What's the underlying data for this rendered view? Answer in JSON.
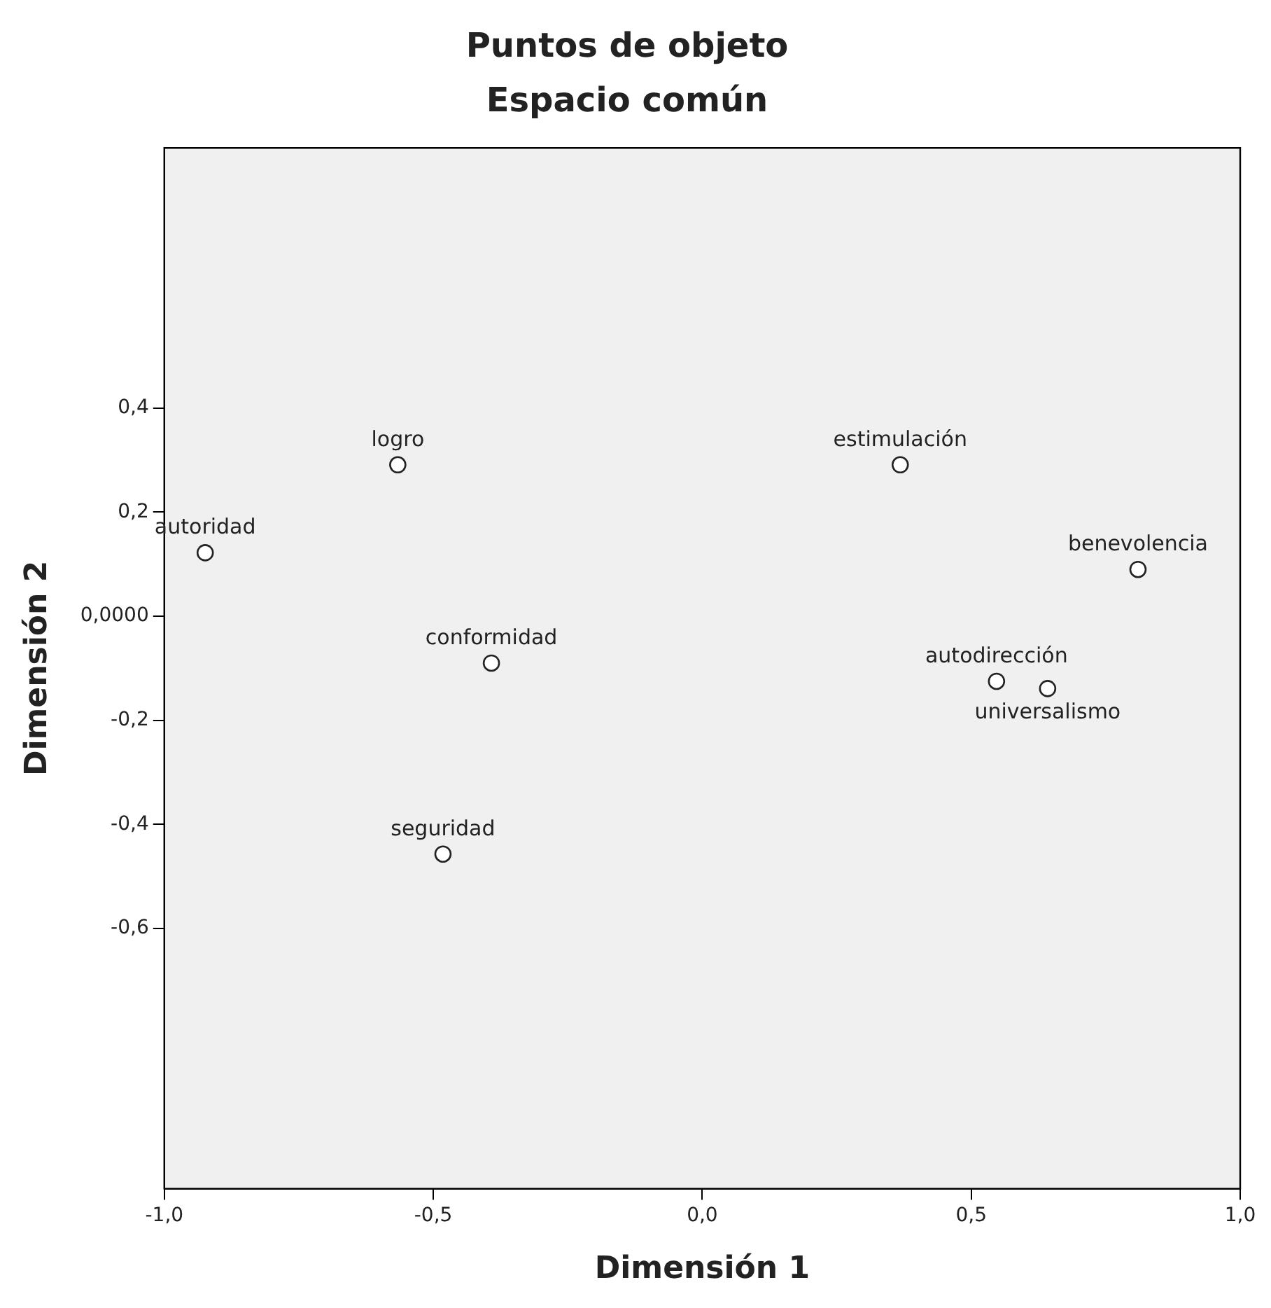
{
  "chart_data": {
    "type": "scatter",
    "title": "Puntos de objeto",
    "subtitle": "Espacio común",
    "xlabel": "Dimensión 1",
    "ylabel": "Dimensión 2",
    "x": [
      -0.924,
      -0.566,
      -0.392,
      -0.482,
      0.368,
      0.81,
      0.547,
      0.642
    ],
    "series": [
      {
        "color": "#222222",
        "values": [
          0.122,
          0.291,
          -0.09,
          -0.457,
          0.291,
          0.09,
          -0.125,
          -0.139
        ]
      }
    ],
    "annotations": [
      {
        "text": "autoridad",
        "x": -0.924,
        "y": 0.122
      },
      {
        "text": "logro",
        "x": -0.566,
        "y": 0.291
      },
      {
        "text": "conformidad",
        "x": -0.392,
        "y": -0.09
      },
      {
        "text": "seguridad",
        "x": -0.482,
        "y": -0.457
      },
      {
        "text": "estimulación",
        "x": 0.368,
        "y": 0.291
      },
      {
        "text": "benevolencia",
        "x": 0.81,
        "y": 0.09
      },
      {
        "text": "autodirección",
        "x": 0.547,
        "y": -0.125
      },
      {
        "text": "universalismo",
        "x": 0.642,
        "y": -0.139
      }
    ],
    "xlim": [
      -1.0,
      1.0
    ],
    "ylim": [
      -1.1,
      0.9
    ],
    "xticks": [
      {
        "value": -1,
        "label": "-1,0"
      },
      {
        "value": -0.5,
        "label": "-0,5"
      },
      {
        "value": 0,
        "label": "0,0"
      },
      {
        "value": 0.5,
        "label": "0,5"
      },
      {
        "value": 1,
        "label": "1,0"
      }
    ],
    "yticks": [
      {
        "value": 0.4,
        "label": "0,4"
      },
      {
        "value": 0.2,
        "label": "0,2"
      },
      {
        "value": 0,
        "label": "0,0000"
      },
      {
        "value": -0.2,
        "label": "-0,2"
      },
      {
        "value": -0.4,
        "label": "-0,4"
      },
      {
        "value": -0.6,
        "label": "-0,6"
      }
    ],
    "grid": false,
    "legend": false,
    "marker": "circle"
  }
}
